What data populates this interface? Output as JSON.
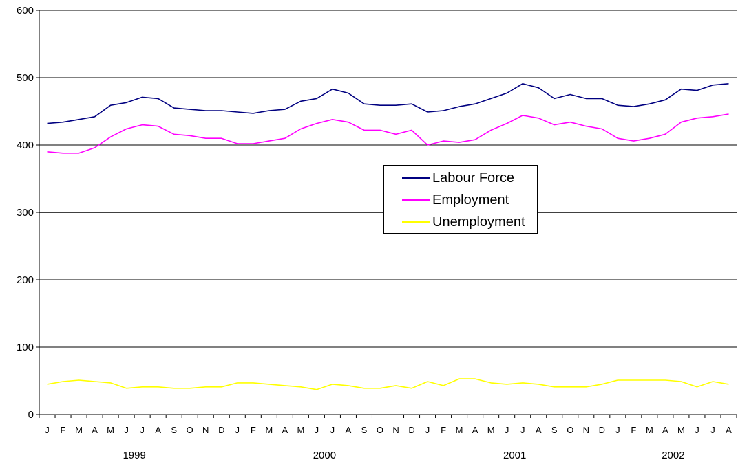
{
  "chart_data": {
    "type": "line",
    "ylim": [
      0,
      600
    ],
    "yticks": [
      "0",
      "100",
      "200",
      "300",
      "400",
      "500",
      "600"
    ],
    "categories": [
      "J",
      "F",
      "M",
      "A",
      "M",
      "J",
      "J",
      "A",
      "S",
      "O",
      "N",
      "D",
      "J",
      "F",
      "M",
      "A",
      "M",
      "J",
      "J",
      "A",
      "S",
      "O",
      "N",
      "D",
      "J",
      "F",
      "M",
      "A",
      "M",
      "J",
      "J",
      "A",
      "S",
      "O",
      "N",
      "D",
      "J",
      "F",
      "M",
      "A",
      "M",
      "J",
      "J",
      "A"
    ],
    "years": [
      "1999",
      "2000",
      "2001",
      "2002"
    ],
    "grid": true,
    "legend_position": "center-right",
    "series": [
      {
        "name": "Labour Force",
        "color": "#000080",
        "values": [
          432,
          434,
          438,
          442,
          459,
          463,
          471,
          469,
          455,
          453,
          451,
          451,
          449,
          447,
          451,
          453,
          465,
          469,
          483,
          477,
          461,
          459,
          459,
          461,
          449,
          451,
          457,
          461,
          469,
          477,
          491,
          485,
          469,
          475,
          469,
          469,
          459,
          457,
          461,
          467,
          483,
          481,
          489,
          491
        ]
      },
      {
        "name": "Employment",
        "color": "#ff00ff",
        "values": [
          390,
          388,
          388,
          396,
          412,
          424,
          430,
          428,
          416,
          414,
          410,
          410,
          402,
          402,
          406,
          410,
          424,
          432,
          438,
          434,
          422,
          422,
          416,
          422,
          400,
          406,
          404,
          408,
          422,
          432,
          444,
          440,
          430,
          434,
          428,
          424,
          410,
          406,
          410,
          416,
          434,
          440,
          442,
          446
        ]
      },
      {
        "name": "Unemployment",
        "color": "#ffff00",
        "values": [
          45,
          49,
          51,
          49,
          47,
          39,
          41,
          41,
          39,
          39,
          41,
          41,
          47,
          47,
          45,
          43,
          41,
          37,
          45,
          43,
          39,
          39,
          43,
          39,
          49,
          43,
          53,
          53,
          47,
          45,
          47,
          45,
          41,
          41,
          41,
          45,
          51,
          51,
          51,
          51,
          49,
          41,
          49,
          45
        ]
      }
    ]
  }
}
